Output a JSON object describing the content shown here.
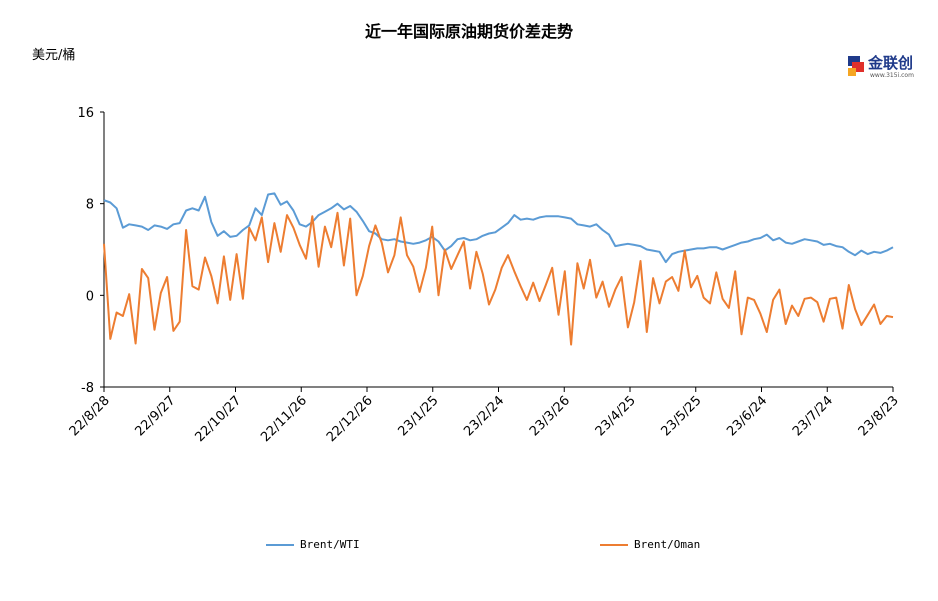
{
  "title": "近一年国际原油期货价差走势",
  "unit": "美元/桶",
  "logo": {
    "text": "金联创",
    "sub": "www.315i.com"
  },
  "chart_data": {
    "type": "line",
    "title": "近一年国际原油期货价差走势",
    "ylabel": "美元/桶",
    "ylim": [
      -8,
      16
    ],
    "yticks": [
      -8,
      0,
      8,
      16
    ],
    "ytick_labels": [
      "-8",
      "0",
      "8",
      "16"
    ],
    "x_tick_labels": [
      "22/8/28",
      "22/9/27",
      "22/10/27",
      "22/11/26",
      "22/12/26",
      "23/1/25",
      "23/2/24",
      "23/3/26",
      "23/4/25",
      "23/5/25",
      "23/6/24",
      "23/7/24",
      "23/8/23"
    ],
    "x_range": [
      "22/8/28",
      "23/8/23"
    ],
    "grid": false,
    "legend_position": "bottom",
    "series": [
      {
        "name": "Brent/WTI",
        "color": "#5b9bd5",
        "values": [
          8.3,
          8.1,
          7.6,
          5.9,
          6.2,
          6.1,
          6.0,
          5.7,
          6.1,
          6.0,
          5.8,
          6.2,
          6.3,
          7.4,
          7.6,
          7.4,
          8.6,
          6.4,
          5.2,
          5.6,
          5.1,
          5.2,
          5.7,
          6.1,
          7.6,
          7.0,
          8.8,
          8.9,
          7.9,
          8.2,
          7.4,
          6.2,
          6.0,
          6.4,
          7.0,
          7.3,
          7.6,
          8.0,
          7.5,
          7.8,
          7.3,
          6.5,
          5.6,
          5.4,
          4.9,
          4.8,
          4.9,
          4.7,
          4.6,
          4.5,
          4.6,
          4.8,
          5.1,
          4.7,
          3.9,
          4.3,
          4.9,
          5.0,
          4.8,
          4.9,
          5.2,
          5.4,
          5.5,
          5.9,
          6.3,
          7.0,
          6.6,
          6.7,
          6.6,
          6.8,
          6.9,
          6.9,
          6.9,
          6.8,
          6.7,
          6.2,
          6.1,
          6.0,
          6.2,
          5.7,
          5.3,
          4.3,
          4.4,
          4.5,
          4.4,
          4.3,
          4.0,
          3.9,
          3.8,
          2.9,
          3.6,
          3.8,
          3.9,
          4.0,
          4.1,
          4.1,
          4.2,
          4.2,
          4.0,
          4.2,
          4.4,
          4.6,
          4.7,
          4.9,
          5.0,
          5.3,
          4.8,
          5.0,
          4.6,
          4.5,
          4.7,
          4.9,
          4.8,
          4.7,
          4.4,
          4.5,
          4.3,
          4.2,
          3.8,
          3.5,
          3.9,
          3.6,
          3.8,
          3.7,
          3.9,
          4.2
        ]
      },
      {
        "name": "Brent/Oman",
        "color": "#ed7d31",
        "values": [
          4.5,
          -3.8,
          -1.5,
          -1.8,
          0.1,
          -4.2,
          2.3,
          1.5,
          -3.0,
          0.2,
          1.6,
          -3.1,
          -2.3,
          5.7,
          0.8,
          0.5,
          3.3,
          1.7,
          -0.7,
          3.4,
          -0.4,
          3.6,
          -0.3,
          5.9,
          4.8,
          6.8,
          2.9,
          6.3,
          3.8,
          7.0,
          5.9,
          4.4,
          3.2,
          6.9,
          2.5,
          6.0,
          4.2,
          7.2,
          2.6,
          6.7,
          0.0,
          1.7,
          4.3,
          6.1,
          4.6,
          2.0,
          3.5,
          6.8,
          3.5,
          2.5,
          0.3,
          2.4,
          6.0,
          0.0,
          4.0,
          2.3,
          3.5,
          4.7,
          0.6,
          3.8,
          1.9,
          -0.8,
          0.5,
          2.4,
          3.5,
          2.1,
          0.8,
          -0.4,
          1.1,
          -0.5,
          0.9,
          2.4,
          -1.7,
          2.1,
          -4.3,
          2.8,
          0.6,
          3.1,
          -0.2,
          1.2,
          -1.0,
          0.5,
          1.6,
          -2.8,
          -0.6,
          3.0,
          -3.2,
          1.5,
          -0.7,
          1.2,
          1.6,
          0.4,
          3.9,
          0.7,
          1.7,
          -0.2,
          -0.7,
          2.0,
          -0.3,
          -1.1,
          2.1,
          -3.4,
          -0.2,
          -0.4,
          -1.6,
          -3.2,
          -0.4,
          0.5,
          -2.5,
          -0.9,
          -1.8,
          -0.3,
          -0.2,
          -0.6,
          -2.3,
          -0.3,
          -0.2,
          -2.9,
          0.9,
          -1.2,
          -2.6,
          -1.7,
          -0.8,
          -2.5,
          -1.8,
          -1.9
        ]
      }
    ]
  }
}
